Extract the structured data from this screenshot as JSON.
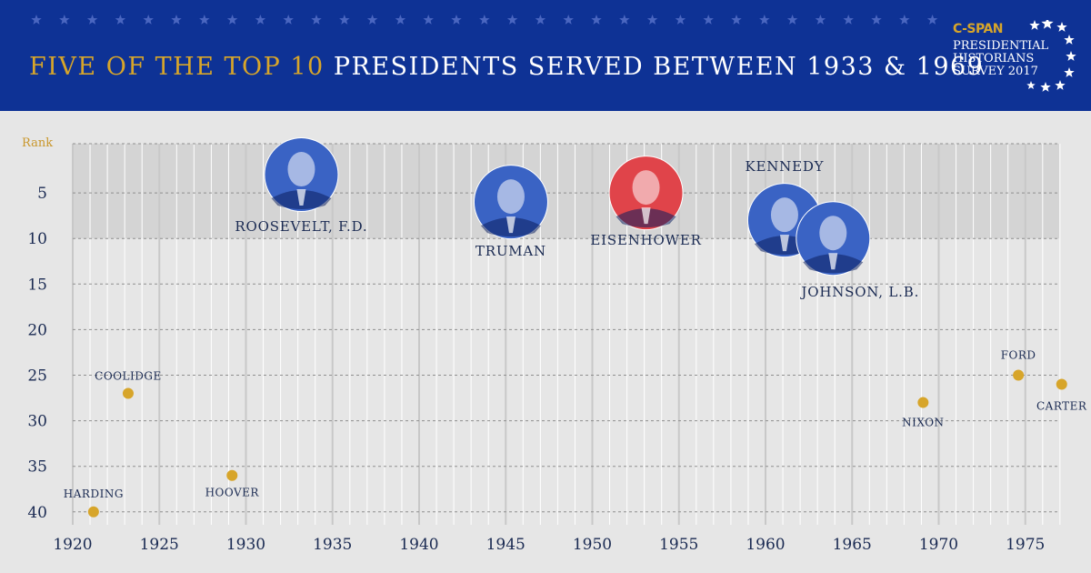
{
  "header": {
    "title_highlight": "FIVE OF THE TOP 10",
    "title_rest": "PRESIDENTS SERVED BETWEEN 1933 & 1969",
    "logo_brand": "C-SPAN",
    "logo_lines": [
      "PRESIDENTIAL",
      "HISTORIANS",
      "SURVEY 2017"
    ]
  },
  "colors": {
    "banner": "#0e3295",
    "gold": "#d7a52a",
    "portrait_blue": "#3a63c4",
    "portrait_red": "#e0444a",
    "text_navy": "#1a2a52"
  },
  "chart_data": {
    "type": "scatter",
    "ylabel": "Rank",
    "xlim": [
      1920,
      1977
    ],
    "ylim": [
      1,
      40
    ],
    "y_inverted": true,
    "x_ticks": [
      1920,
      1925,
      1930,
      1935,
      1940,
      1945,
      1950,
      1955,
      1960,
      1965,
      1970,
      1975
    ],
    "y_ticks": [
      5,
      10,
      15,
      20,
      25,
      30,
      35,
      40
    ],
    "highlight_band": [
      1,
      10
    ],
    "points": [
      {
        "name": "HARDING",
        "x": 1921.2,
        "y": 40,
        "style": "dot"
      },
      {
        "name": "COOLIDGE",
        "x": 1923.2,
        "y": 27,
        "style": "dot"
      },
      {
        "name": "HOOVER",
        "x": 1929.2,
        "y": 36,
        "style": "dot"
      },
      {
        "name": "ROOSEVELT, F.D.",
        "x": 1933.2,
        "y": 3,
        "style": "portrait-blue"
      },
      {
        "name": "TRUMAN",
        "x": 1945.3,
        "y": 6,
        "style": "portrait-blue"
      },
      {
        "name": "EISENHOWER",
        "x": 1953.1,
        "y": 5,
        "style": "portrait-red"
      },
      {
        "name": "KENNEDY",
        "x": 1961.1,
        "y": 8,
        "style": "portrait-blue"
      },
      {
        "name": "JOHNSON, L.B.",
        "x": 1963.9,
        "y": 10,
        "style": "portrait-blue"
      },
      {
        "name": "NIXON",
        "x": 1969.1,
        "y": 28,
        "style": "dot"
      },
      {
        "name": "FORD",
        "x": 1974.6,
        "y": 25,
        "style": "dot"
      },
      {
        "name": "CARTER",
        "x": 1977.1,
        "y": 26,
        "style": "dot"
      }
    ]
  }
}
